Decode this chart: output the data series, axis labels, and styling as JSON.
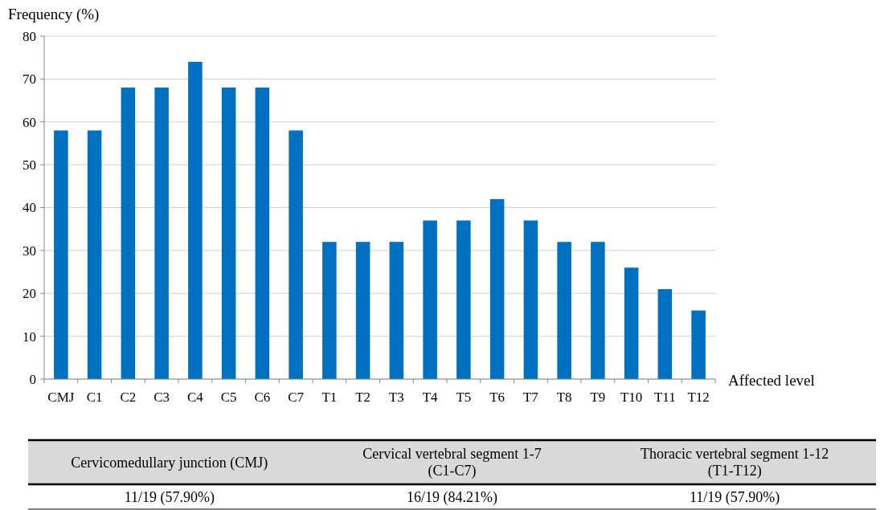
{
  "chart_data": {
    "type": "bar",
    "xlabel": "Affected level",
    "ylabel": "Frequency (%)",
    "categories": [
      "CMJ",
      "C1",
      "C2",
      "C3",
      "C4",
      "C5",
      "C6",
      "C7",
      "T1",
      "T2",
      "T3",
      "T4",
      "T5",
      "T6",
      "T7",
      "T8",
      "T9",
      "T10",
      "T11",
      "T12"
    ],
    "values": [
      58,
      58,
      68,
      68,
      74,
      68,
      68,
      58,
      32,
      32,
      32,
      37,
      37,
      42,
      37,
      32,
      32,
      26,
      21,
      16
    ],
    "color": "#0070c0",
    "ylim": [
      0,
      80
    ],
    "yticks": [
      0,
      10,
      20,
      30,
      40,
      50,
      60,
      70,
      80
    ],
    "grid": "y",
    "annotations": [
      "Cervicomedullary junction (CMJ)",
      "Cervical vertebral segment 1-7 (C1-C7)",
      "Thoracic vertebral segment 1-12 (T1-T12)",
      "11/19 (57.90%)",
      "16/19 (84.21%)",
      "11/19 (57.90%)"
    ]
  }
}
